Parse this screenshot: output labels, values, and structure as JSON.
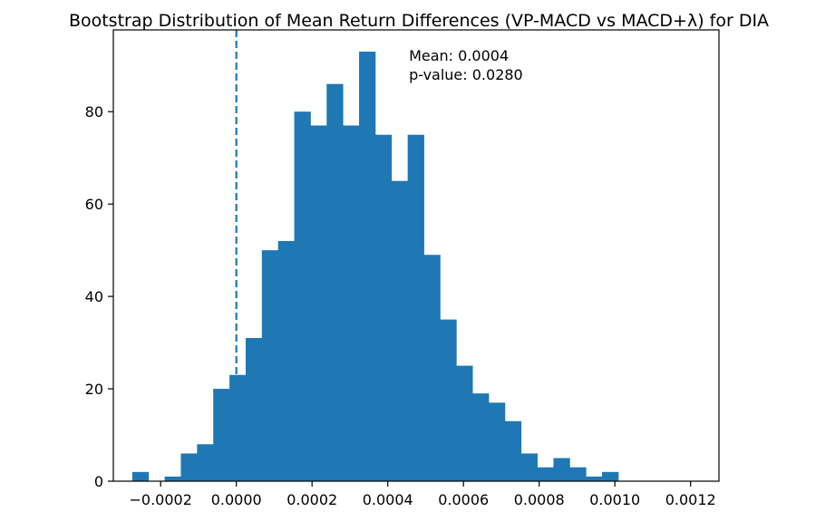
{
  "chart_data": {
    "type": "bar",
    "title": "Bootstrap Distribution of Mean Return Differences (VP-MACD vs MACD+λ) for DIA",
    "xlabel": "",
    "ylabel": "",
    "bin_start": -0.000275,
    "bin_width": 4.28e-05,
    "counts": [
      2,
      0,
      1,
      6,
      8,
      20,
      23,
      31,
      50,
      52,
      80,
      77,
      86,
      77,
      93,
      75,
      65,
      75,
      49,
      35,
      25,
      19,
      17,
      13,
      6,
      3,
      5,
      3,
      1,
      2
    ],
    "xlim": [
      -0.000325,
      0.001275
    ],
    "ylim": [
      0,
      97.7
    ],
    "x_ticks": [
      -0.0002,
      0.0,
      0.0002,
      0.0004,
      0.0006,
      0.0008,
      0.001,
      0.0012
    ],
    "x_tick_labels": [
      "−0.0002",
      "0.0000",
      "0.0002",
      "0.0004",
      "0.0006",
      "0.0008",
      "0.0010",
      "0.0012"
    ],
    "y_ticks": [
      0,
      20,
      40,
      60,
      80
    ],
    "y_tick_labels": [
      "0",
      "20",
      "40",
      "60",
      "80"
    ],
    "reference_line": {
      "x": 0.0,
      "style": "dashed"
    },
    "annotation": {
      "mean_text": "Mean: 0.0004",
      "pvalue_text": "p-value: 0.0280",
      "x": 0.000456,
      "y": 91
    },
    "bar_color": "#1f77b4",
    "line_color": "#1f77b4",
    "grid": false,
    "legend": "none"
  }
}
